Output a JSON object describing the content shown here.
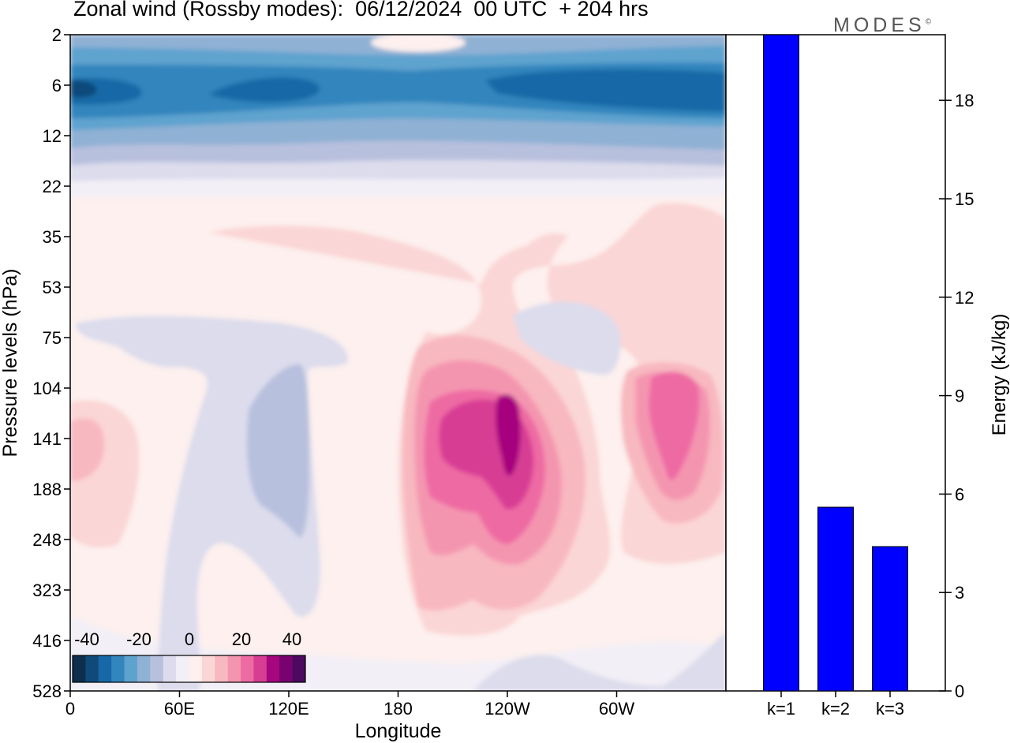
{
  "title": "Zonal wind (Rossby modes):  06/12/2024  00 UTC  + 204 hrs",
  "logo": "MODES",
  "logo_mark": "©",
  "chart_data": [
    {
      "type": "heatmap",
      "title": "Zonal wind (Rossby modes):  06/12/2024  00 UTC  + 204 hrs",
      "xlabel": "Longitude",
      "ylabel": "Pressure levels (hPa)",
      "x_ticks": [
        "0",
        "60E",
        "120E",
        "180",
        "120W",
        "60W"
      ],
      "y_ticks": [
        "2",
        "6",
        "12",
        "22",
        "35",
        "53",
        "75",
        "104",
        "141",
        "188",
        "248",
        "323",
        "416",
        "528"
      ],
      "colorbar": {
        "labels": [
          "-40",
          "-20",
          "0",
          "20",
          "40"
        ],
        "colors": [
          "#0d2e4d",
          "#0f4a7a",
          "#1669a6",
          "#3385bd",
          "#5ea3cf",
          "#8fb1d4",
          "#b7c0dd",
          "#dcdcec",
          "#f3eff6",
          "#fdf0ee",
          "#fbd6d6",
          "#f8b8c0",
          "#f495b0",
          "#ee6aa3",
          "#d83d94",
          "#a6067f",
          "#780370",
          "#4d0860"
        ]
      },
      "features": [
        {
          "name": "upper easterly band",
          "level_hPa": [
            2,
            20
          ],
          "value_m_s": -30
        },
        {
          "name": "jet core near 120W",
          "longitude": "120W",
          "level_hPa": 141,
          "value_m_s": 40
        },
        {
          "name": "jet core near 40W",
          "longitude": "40W",
          "level_hPa": 141,
          "value_m_s": 30
        },
        {
          "name": "easterly region near 120E",
          "longitude": "120E",
          "level_hPa": 188,
          "value_m_s": -10
        }
      ]
    },
    {
      "type": "bar",
      "categories": [
        "k=1",
        "k=2",
        "k=3"
      ],
      "values": [
        20.0,
        5.6,
        4.4
      ],
      "ylabel": "Energy (kJ/kg)",
      "ylim": [
        0,
        20
      ],
      "y_ticks": [
        0,
        3,
        6,
        9,
        12,
        15,
        18
      ],
      "bar_color": "#0000ff"
    }
  ]
}
